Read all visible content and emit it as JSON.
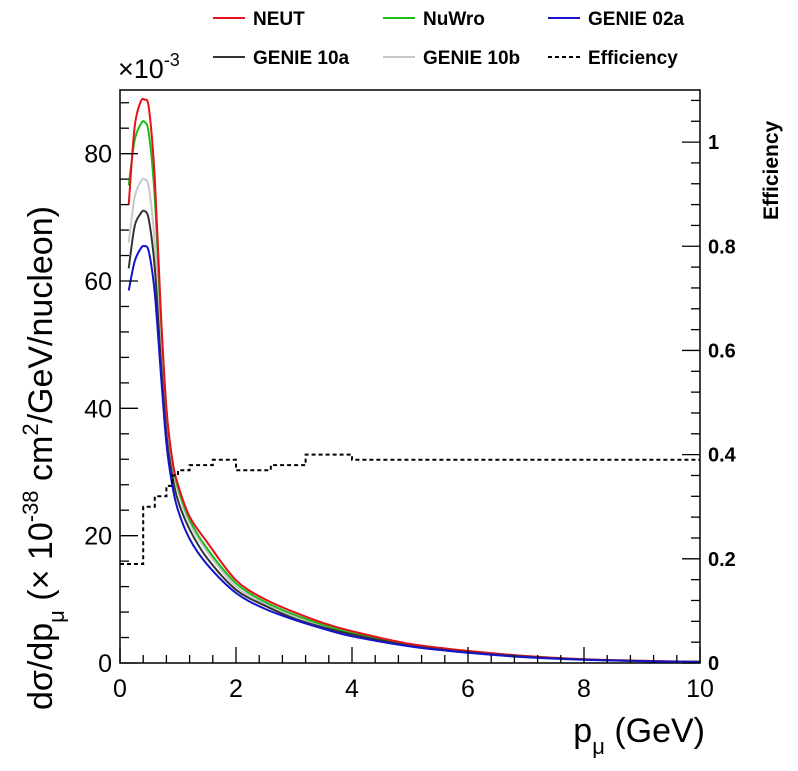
{
  "chart_data": {
    "type": "line",
    "xlabel_main": "p",
    "xlabel_sub": "μ",
    "xlabel_unit": " (GeV)",
    "ylabel_prefix": "dσ/dp",
    "ylabel_sub": "μ",
    "ylabel_mid": "  (× 10",
    "ylabel_sup1": "-38",
    "ylabel_mid2": " cm",
    "ylabel_sup2": "2",
    "ylabel_suffix": "/GeV/nucleon)",
    "y_exponent_label": "×10",
    "y_exponent_sup": "-3",
    "right_axis_label": "Efficiency",
    "xlim": [
      0,
      10
    ],
    "ylim": [
      0,
      90
    ],
    "right_ylim": [
      0,
      1.1
    ],
    "x_ticks": [
      0,
      2,
      4,
      6,
      8,
      10
    ],
    "x_tick_labels": [
      "0",
      "2",
      "4",
      "6",
      "8",
      "10"
    ],
    "y_ticks": [
      0,
      20,
      40,
      60,
      80
    ],
    "y_tick_labels": [
      "0",
      "20",
      "40",
      "60",
      "80"
    ],
    "right_ticks": [
      0,
      0.2,
      0.4,
      0.6,
      0.8,
      1.0
    ],
    "right_tick_labels": [
      "0",
      "0.2",
      "0.4",
      "0.6",
      "0.8",
      "1"
    ],
    "legend": [
      {
        "name": "NEUT",
        "color": "#e8101a",
        "style": "solid"
      },
      {
        "name": "NuWro",
        "color": "#1bbd1b",
        "style": "solid"
      },
      {
        "name": "GENIE 02a",
        "color": "#1414cc",
        "style": "solid"
      },
      {
        "name": "GENIE 10a",
        "color": "#333333",
        "style": "solid"
      },
      {
        "name": "GENIE 10b",
        "color": "#c8c8c8",
        "style": "solid"
      },
      {
        "name": "Efficiency",
        "color": "#000000",
        "style": "dashed"
      }
    ],
    "series": [
      {
        "name": "GENIE 10b",
        "color": "#c8c8c8",
        "x": [
          0.15,
          0.25,
          0.35,
          0.42,
          0.5,
          0.6,
          0.7,
          0.8,
          0.9,
          1.0,
          1.2,
          1.5,
          2.0,
          2.5,
          3.0,
          3.5,
          4.0,
          5.0,
          6.0,
          7.0,
          8.0,
          9.0,
          10.0
        ],
        "y": [
          66,
          73,
          75.5,
          76,
          74.5,
          66,
          51,
          38,
          31,
          27,
          22,
          17.5,
          12,
          9.3,
          7.3,
          5.8,
          4.7,
          2.8,
          1.8,
          1.0,
          0.6,
          0.35,
          0.2
        ]
      },
      {
        "name": "NuWro",
        "color": "#1bbd1b",
        "x": [
          0.15,
          0.25,
          0.35,
          0.42,
          0.5,
          0.6,
          0.7,
          0.8,
          0.9,
          1.0,
          1.2,
          1.5,
          2.0,
          2.5,
          3.0,
          3.5,
          4.0,
          5.0,
          6.0,
          7.0,
          8.0,
          9.0,
          10.0
        ],
        "y": [
          75,
          82,
          84.5,
          85,
          83,
          73,
          55,
          40,
          32,
          27.5,
          22.5,
          18,
          12.5,
          9.6,
          7.6,
          6.0,
          4.7,
          2.8,
          1.8,
          1.0,
          0.55,
          0.3,
          0.2
        ]
      },
      {
        "name": "NEUT",
        "color": "#e8101a",
        "x": [
          0.15,
          0.25,
          0.35,
          0.42,
          0.5,
          0.6,
          0.7,
          0.8,
          0.9,
          1.0,
          1.2,
          1.5,
          2.0,
          2.5,
          3.0,
          3.5,
          4.0,
          5.0,
          6.0,
          7.0,
          8.0,
          9.0,
          10.0
        ],
        "y": [
          72,
          84,
          88,
          88.5,
          87,
          76,
          56,
          40,
          32,
          28,
          23,
          19,
          13,
          10,
          8,
          6.3,
          5,
          3,
          1.9,
          1.1,
          0.6,
          0.35,
          0.2
        ]
      },
      {
        "name": "GENIE 10a",
        "color": "#333333",
        "x": [
          0.15,
          0.25,
          0.35,
          0.42,
          0.5,
          0.6,
          0.7,
          0.8,
          0.9,
          1.0,
          1.2,
          1.5,
          2.0,
          2.5,
          3.0,
          3.5,
          4.0,
          5.0,
          6.0,
          7.0,
          8.0,
          9.0,
          10.0
        ],
        "y": [
          62,
          68.5,
          70.5,
          71,
          69.5,
          62,
          48,
          36,
          29.5,
          25.5,
          21,
          16.5,
          11.5,
          9,
          7,
          5.6,
          4.5,
          2.7,
          1.7,
          1.0,
          0.55,
          0.3,
          0.2
        ]
      },
      {
        "name": "GENIE 02a",
        "color": "#1414cc",
        "x": [
          0.15,
          0.25,
          0.35,
          0.42,
          0.5,
          0.6,
          0.7,
          0.8,
          0.9,
          1.0,
          1.2,
          1.5,
          2.0,
          2.5,
          3.0,
          3.5,
          4.0,
          5.0,
          6.0,
          7.0,
          8.0,
          9.0,
          10.0
        ],
        "y": [
          58.5,
          63,
          65,
          65.5,
          64.5,
          58,
          46,
          34.5,
          28,
          24,
          19.5,
          15.5,
          11,
          8.5,
          6.8,
          5.4,
          4.2,
          2.6,
          1.6,
          0.9,
          0.5,
          0.3,
          0.15
        ]
      }
    ],
    "efficiency": {
      "name": "Efficiency",
      "bin_edges": [
        0.0,
        0.4,
        0.6,
        0.8,
        0.9,
        1.0,
        1.2,
        1.6,
        2.0,
        2.2,
        2.6,
        3.2,
        4.0,
        10.0
      ],
      "values": [
        0.19,
        0.3,
        0.32,
        0.34,
        0.36,
        0.37,
        0.38,
        0.39,
        0.37,
        0.37,
        0.38,
        0.4,
        0.39
      ]
    }
  }
}
